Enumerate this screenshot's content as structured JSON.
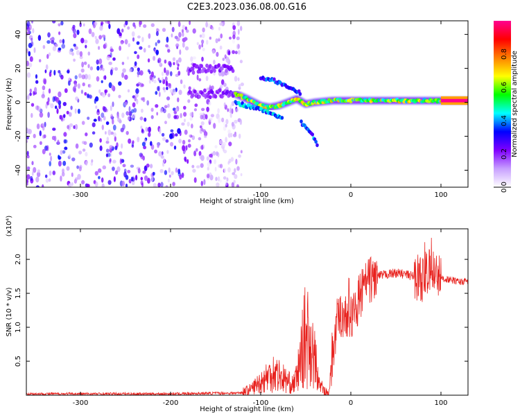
{
  "title": "C2E3.2023.036.08.00.G16",
  "chart_data": [
    {
      "type": "heatmap",
      "xlabel": "Height of straight line (km)",
      "ylabel": "Frequency (Hz)",
      "xlim": [
        -360,
        130
      ],
      "ylim": [
        -50,
        48
      ],
      "xticks": [
        -300,
        -200,
        -100,
        0,
        100
      ],
      "yticks": [
        -40,
        -20,
        0,
        20,
        40
      ],
      "colorbar": {
        "label": "Normalized spectral amplitude",
        "range": [
          0,
          1
        ],
        "ticks": [
          0.0,
          0.2,
          0.4,
          0.6,
          0.8
        ],
        "colors": [
          "#ffffff",
          "#c8a0ff",
          "#8000ff",
          "#0000ff",
          "#00ffff",
          "#00ff00",
          "#ffff00",
          "#ff8000",
          "#ff0000",
          "#ff0090"
        ]
      },
      "features": [
        {
          "name": "noise region",
          "x_range": [
            -360,
            -120
          ],
          "y_range": [
            -50,
            48
          ],
          "amplitude": 0.1
        },
        {
          "name": "band 20Hz",
          "x_range": [
            -180,
            -130
          ],
          "y": 20,
          "amplitude": 0.15
        },
        {
          "name": "band 5Hz",
          "x_range": [
            -180,
            -130
          ],
          "y": 5,
          "amplitude": 0.15
        },
        {
          "name": "main trace",
          "points": [
            [
              -128,
              5
            ],
            [
              -115,
              2
            ],
            [
              -100,
              -2
            ],
            [
              -90,
              -3
            ],
            [
              -80,
              -2
            ],
            [
              -70,
              0
            ],
            [
              -60,
              2
            ],
            [
              -50,
              -1
            ],
            [
              -40,
              0
            ],
            [
              -20,
              1
            ],
            [
              0,
              1
            ],
            [
              50,
              1
            ],
            [
              100,
              1
            ],
            [
              130,
              1
            ]
          ],
          "amplitude": 0.5
        },
        {
          "name": "lower branch",
          "points": [
            [
              -128,
              0
            ],
            [
              -110,
              -3
            ],
            [
              -95,
              -5
            ],
            [
              -85,
              -7
            ],
            [
              -75,
              -10
            ]
          ],
          "amplitude": 0.35
        },
        {
          "name": "descending branch",
          "points": [
            [
              -55,
              -12
            ],
            [
              -45,
              -17
            ],
            [
              -40,
              -22
            ],
            [
              -36,
              -26
            ]
          ],
          "amplitude": 0.3
        },
        {
          "name": "upper branch",
          "points": [
            [
              -100,
              14
            ],
            [
              -85,
              13
            ],
            [
              -75,
              10
            ],
            [
              -65,
              8
            ],
            [
              -55,
              5
            ]
          ],
          "amplitude": 0.3
        },
        {
          "name": "peak segment",
          "x_range": [
            100,
            130
          ],
          "y": 1,
          "amplitude": 1.0
        }
      ]
    },
    {
      "type": "line",
      "xlabel": "Height of straight line (km)",
      "ylabel": "SNR (10 * v/v)",
      "y_multiplier": "(x10⁴)",
      "xlim": [
        -360,
        130
      ],
      "ylim": [
        0,
        2.45
      ],
      "xticks": [
        -300,
        -200,
        -100,
        0,
        100
      ],
      "yticks": [
        0.5,
        1.0,
        1.5,
        2.0
      ],
      "series": [
        {
          "color": "#e8221e",
          "x": [
            -360,
            -300,
            -250,
            -200,
            -150,
            -130,
            -120,
            -110,
            -100,
            -95,
            -90,
            -85,
            -80,
            -75,
            -70,
            -65,
            -60,
            -55,
            -50,
            -45,
            -40,
            -35,
            -30,
            -25,
            -20,
            -15,
            -10,
            -5,
            0,
            5,
            10,
            15,
            20,
            25,
            30,
            40,
            50,
            60,
            70,
            80,
            85,
            90,
            95,
            100,
            110,
            120,
            130
          ],
          "y": [
            0.02,
            0.02,
            0.02,
            0.02,
            0.03,
            0.03,
            0.04,
            0.1,
            0.2,
            0.25,
            0.3,
            0.35,
            0.3,
            0.25,
            0.2,
            0.15,
            0.25,
            0.6,
            0.9,
            0.8,
            0.5,
            0.2,
            0.05,
            0.02,
            0.6,
            1.1,
            1.2,
            1.15,
            1.1,
            1.3,
            1.45,
            1.6,
            1.7,
            1.72,
            1.75,
            1.78,
            1.8,
            1.78,
            1.75,
            1.72,
            1.8,
            1.82,
            1.8,
            1.72,
            1.7,
            1.67,
            1.68
          ]
        }
      ]
    }
  ]
}
